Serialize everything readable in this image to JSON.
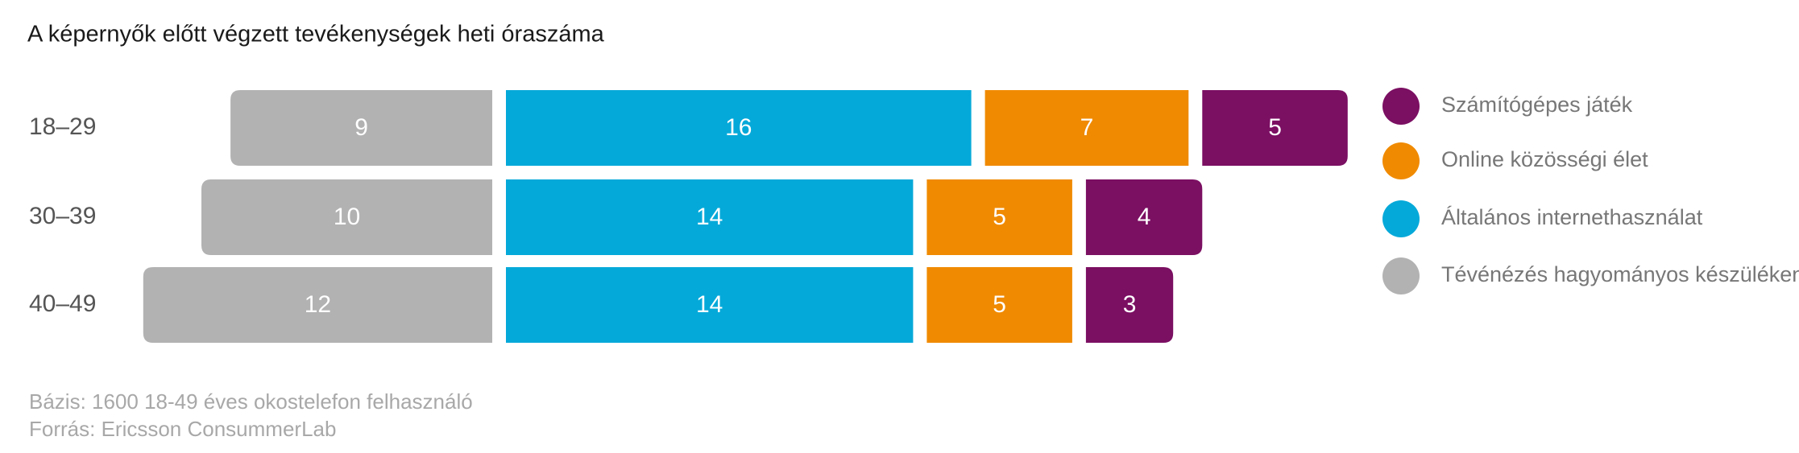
{
  "chart_data": {
    "type": "diverging-stacked-bar",
    "title": "A képernyők előtt végzett tevékenységek heti óraszáma",
    "categories": [
      "18–29",
      "30–39",
      "40–49"
    ],
    "series": [
      {
        "name": "Tévénézés hagyományos készüléken",
        "color": "#b3b2b2",
        "values": [
          9,
          10,
          12
        ]
      },
      {
        "name": "Általános internethasználat",
        "color": "#05a9d9",
        "values": [
          16,
          14,
          14
        ]
      },
      {
        "name": "Online közösségi élet",
        "color": "#f08a00",
        "values": [
          7,
          5,
          5
        ]
      },
      {
        "name": "Számítógépes játék",
        "color": "#7b0f62",
        "values": [
          5,
          4,
          3
        ]
      }
    ],
    "notes": [
      "Bázis: 1600 18-49 éves okostelefon felhasználó",
      "Forrás: Ericsson ConsummerLab"
    ]
  }
}
